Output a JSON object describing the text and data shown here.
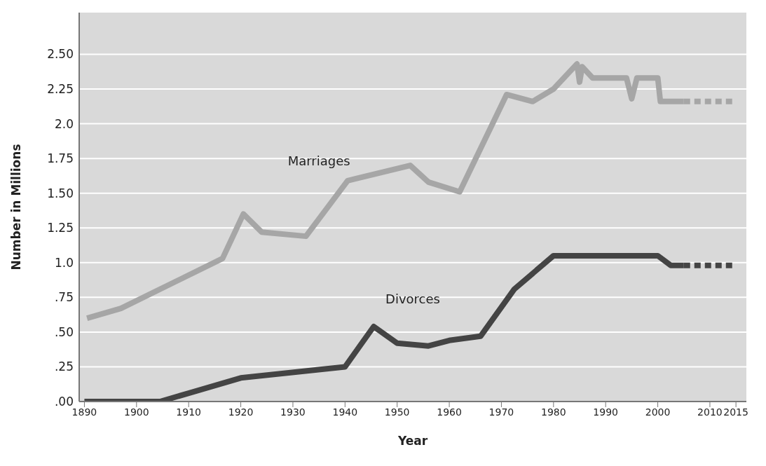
{
  "chart_data": {
    "type": "line",
    "xlabel": "Year",
    "ylabel": "Number in Millions",
    "xlim": [
      1889,
      2017
    ],
    "xticks": [
      1890,
      1900,
      1910,
      1920,
      1930,
      1940,
      1950,
      1960,
      1970,
      1980,
      1990,
      2000,
      2010,
      2015
    ],
    "ylim": [
      0,
      2.8
    ],
    "yticks": [
      {
        "value": 0,
        "label": ".00"
      },
      {
        "value": 0.25,
        "label": ".25"
      },
      {
        "value": 0.5,
        "label": ".50"
      },
      {
        "value": 0.75,
        "label": ".75"
      },
      {
        "value": 1,
        "label": "1.0"
      },
      {
        "value": 1.25,
        "label": "1.25"
      },
      {
        "value": 1.5,
        "label": "1.50"
      },
      {
        "value": 1.75,
        "label": "1.75"
      },
      {
        "value": 2,
        "label": "2.0"
      },
      {
        "value": 2.25,
        "label": "2.25"
      },
      {
        "value": 2.5,
        "label": "2.50"
      }
    ],
    "grid": "y",
    "marker": "none",
    "series": [
      {
        "name": "Marriages",
        "color": "#a6a6a6",
        "line_style": "solid",
        "x": [
          1890.5,
          1897,
          1916.5,
          1920.5,
          1924,
          1932.5,
          1940.5,
          1952.5,
          1956,
          1962,
          1971,
          1976,
          1980,
          1984.5,
          1985,
          1985.5,
          1987.5,
          1994,
          1995,
          1996,
          2000,
          2000.5,
          2005
        ],
        "values": [
          0.6,
          0.67,
          1.03,
          1.35,
          1.22,
          1.19,
          1.59,
          1.7,
          1.58,
          1.51,
          2.21,
          2.16,
          2.25,
          2.43,
          2.3,
          2.41,
          2.33,
          2.33,
          2.18,
          2.33,
          2.33,
          2.16,
          2.16
        ]
      },
      {
        "color": "#a6a6a6",
        "line_style": "dashed",
        "x": [
          2005,
          2015
        ],
        "values": [
          2.16,
          2.16
        ]
      },
      {
        "name": "Divorces",
        "color": "#444444",
        "line_style": "solid",
        "x": [
          1890,
          1904.5,
          1910,
          1920,
          1940,
          1945.5,
          1950,
          1956,
          1960,
          1966,
          1972.5,
          1980,
          2000,
          2002.5,
          2005
        ],
        "values": [
          0,
          0,
          0.06,
          0.17,
          0.25,
          0.54,
          0.42,
          0.4,
          0.44,
          0.47,
          0.81,
          1.05,
          1.05,
          0.98,
          0.98
        ]
      },
      {
        "color": "#444444",
        "line_style": "dashed",
        "x": [
          2005,
          2015
        ],
        "values": [
          0.98,
          0.98
        ]
      }
    ]
  }
}
